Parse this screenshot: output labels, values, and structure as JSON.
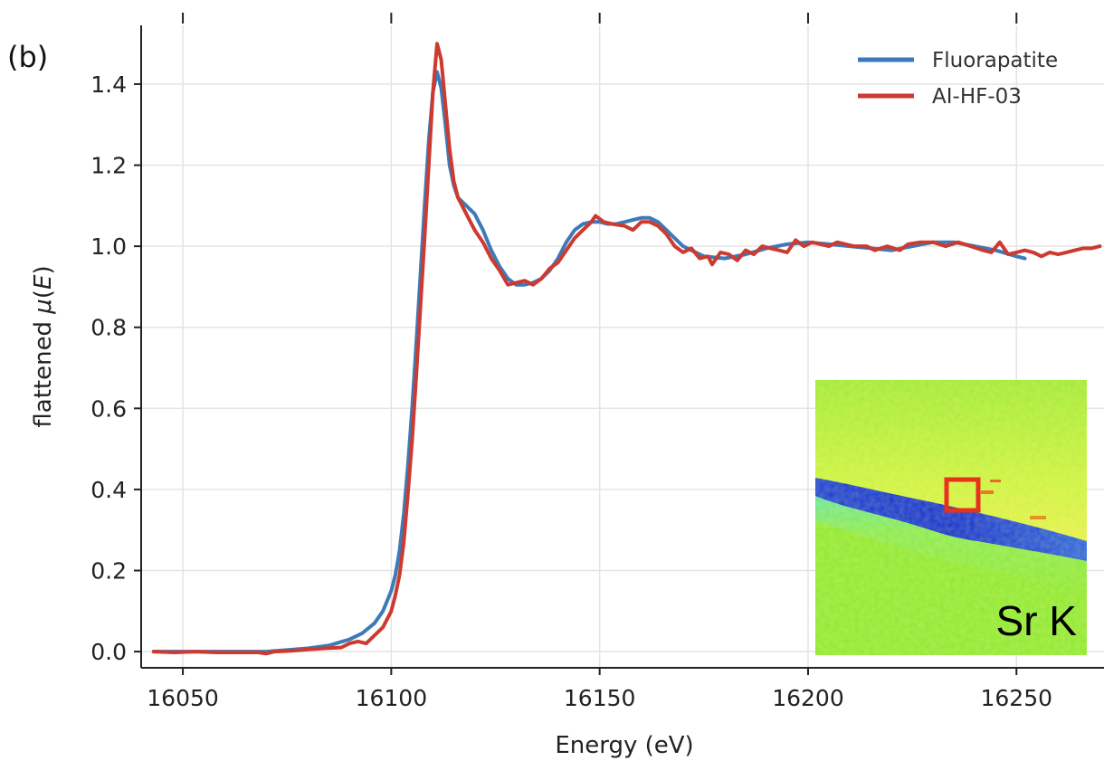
{
  "chart_data": {
    "type": "line",
    "panel_label": "(b)",
    "xlabel": "Energy (eV)",
    "ylabel_prefix": "flattened ",
    "ylabel_mu": "μ",
    "ylabel_open": "(",
    "ylabel_var": "E",
    "ylabel_close": ")",
    "xlim": [
      16040,
      16271
    ],
    "ylim": [
      -0.04,
      1.545
    ],
    "x_ticks": [
      16050,
      16100,
      16150,
      16200,
      16250
    ],
    "x_tick_labels": [
      "16050",
      "16100",
      "16150",
      "16200",
      "16250"
    ],
    "y_ticks": [
      0.0,
      0.2,
      0.4,
      0.6,
      0.8,
      1.0,
      1.2,
      1.4
    ],
    "y_tick_labels": [
      "0.0",
      "0.2",
      "0.4",
      "0.6",
      "0.8",
      "1.0",
      "1.2",
      "1.4"
    ],
    "grid": true,
    "legend_position": "top-right",
    "series": [
      {
        "name": "Fluorapatite",
        "color": "#3d7ab8",
        "x": [
          16043,
          16050,
          16060,
          16070,
          16080,
          16085,
          16090,
          16093,
          16096,
          16098,
          16100,
          16101,
          16102,
          16103,
          16104,
          16105,
          16106,
          16107,
          16108,
          16109,
          16110,
          16111,
          16112,
          16113,
          16114,
          16115,
          16116,
          16118,
          16120,
          16122,
          16124,
          16126,
          16128,
          16130,
          16132,
          16134,
          16136,
          16138,
          16140,
          16142,
          16144,
          16146,
          16148,
          16150,
          16152,
          16154,
          16156,
          16158,
          16160,
          16162,
          16164,
          16166,
          16168,
          16170,
          16175,
          16180,
          16185,
          16190,
          16195,
          16200,
          16205,
          16210,
          16215,
          16220,
          16225,
          16230,
          16235,
          16240,
          16245,
          16250,
          16252
        ],
        "y": [
          0.0,
          0.0,
          0.0,
          0.0,
          0.008,
          0.015,
          0.03,
          0.045,
          0.07,
          0.1,
          0.15,
          0.19,
          0.25,
          0.34,
          0.46,
          0.6,
          0.76,
          0.93,
          1.1,
          1.26,
          1.38,
          1.43,
          1.39,
          1.3,
          1.2,
          1.15,
          1.12,
          1.1,
          1.08,
          1.04,
          0.99,
          0.95,
          0.92,
          0.905,
          0.905,
          0.91,
          0.92,
          0.94,
          0.97,
          1.01,
          1.04,
          1.055,
          1.06,
          1.06,
          1.055,
          1.055,
          1.06,
          1.065,
          1.07,
          1.07,
          1.06,
          1.04,
          1.02,
          1.0,
          0.975,
          0.97,
          0.98,
          0.995,
          1.005,
          1.01,
          1.005,
          1.0,
          0.995,
          0.99,
          1.0,
          1.01,
          1.01,
          1.0,
          0.99,
          0.975,
          0.97
        ]
      },
      {
        "name": "AI-HF-03",
        "color": "#cc3a30",
        "x": [
          16043,
          16048,
          16053,
          16058,
          16063,
          16068,
          16070,
          16072,
          16076,
          16080,
          16084,
          16088,
          16090,
          16092,
          16094,
          16096,
          16098,
          16100,
          16101,
          16102,
          16103,
          16104,
          16105,
          16106,
          16107,
          16108,
          16109,
          16110,
          16111,
          16112,
          16113,
          16114,
          16115,
          16116,
          16118,
          16120,
          16122,
          16124,
          16126,
          16128,
          16130,
          16132,
          16134,
          16136,
          16138,
          16140,
          16142,
          16144,
          16146,
          16148,
          16149,
          16151,
          16153,
          16156,
          16158,
          16160,
          16162,
          16164,
          16166,
          16168,
          16170,
          16172,
          16174,
          16176,
          16177,
          16179,
          16181,
          16183,
          16185,
          16187,
          16189,
          16191,
          16193,
          16195,
          16197,
          16199,
          16201,
          16203,
          16205,
          16207,
          16209,
          16211,
          16214,
          16216,
          16219,
          16222,
          16224,
          16227,
          16230,
          16233,
          16236,
          16239,
          16242,
          16244,
          16246,
          16248,
          16250,
          16252,
          16254,
          16256,
          16258,
          16260,
          16262,
          16264,
          16266,
          16268,
          16270
        ],
        "y": [
          0.0,
          -0.002,
          0.0,
          -0.002,
          -0.002,
          -0.002,
          -0.005,
          0.0,
          0.002,
          0.005,
          0.008,
          0.01,
          0.02,
          0.025,
          0.02,
          0.04,
          0.06,
          0.1,
          0.14,
          0.19,
          0.27,
          0.39,
          0.52,
          0.68,
          0.85,
          1.02,
          1.2,
          1.38,
          1.5,
          1.46,
          1.35,
          1.24,
          1.16,
          1.12,
          1.08,
          1.04,
          1.01,
          0.97,
          0.94,
          0.905,
          0.91,
          0.915,
          0.905,
          0.92,
          0.945,
          0.96,
          0.99,
          1.02,
          1.04,
          1.06,
          1.075,
          1.06,
          1.055,
          1.05,
          1.04,
          1.06,
          1.06,
          1.05,
          1.03,
          1.0,
          0.985,
          0.995,
          0.97,
          0.975,
          0.955,
          0.985,
          0.98,
          0.965,
          0.99,
          0.98,
          1.0,
          0.995,
          0.99,
          0.985,
          1.015,
          1.0,
          1.01,
          1.005,
          1.0,
          1.01,
          1.005,
          1.0,
          1.0,
          0.99,
          1.0,
          0.99,
          1.005,
          1.01,
          1.01,
          1.0,
          1.01,
          1.0,
          0.99,
          0.985,
          1.01,
          0.98,
          0.985,
          0.99,
          0.985,
          0.975,
          0.985,
          0.98,
          0.985,
          0.99,
          0.995,
          0.995,
          1.0
        ]
      }
    ]
  },
  "inset": {
    "label": "Sr K",
    "background_color": "#8ee832",
    "upper_color": "#bff23a",
    "band_color": "#1535d8",
    "lower_color": "#5fe4a8",
    "marker_color": "#e8321e"
  }
}
